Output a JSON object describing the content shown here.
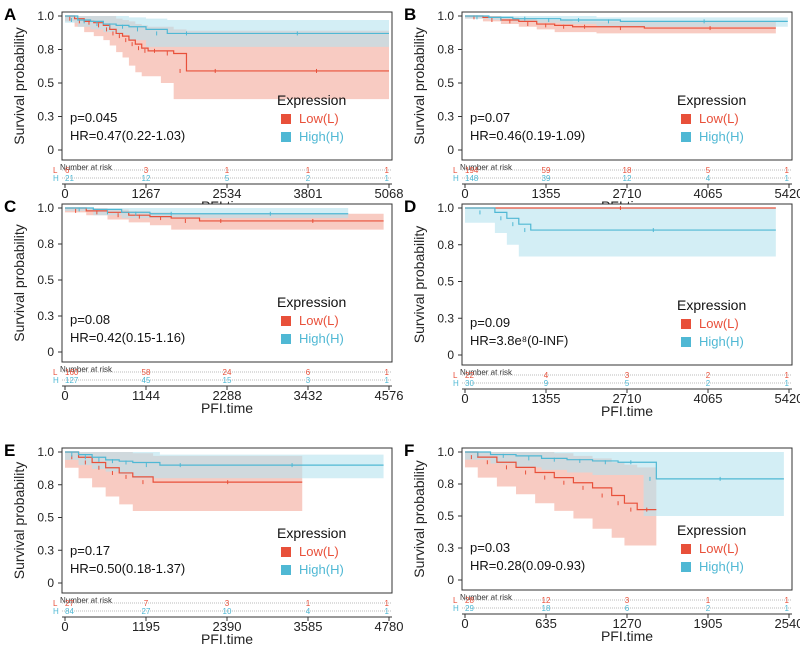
{
  "colors": {
    "low": "#e8503a",
    "high": "#4fb8d4",
    "low_band": "#f4a89a",
    "high_band": "#b5e3ef",
    "axis": "#333333"
  },
  "chart_data": [
    {
      "type": "line",
      "panel": "A",
      "xlabel": "PFI.time",
      "ylabel": "Survival probability",
      "xlim": [
        0,
        5068
      ],
      "ylim": [
        0,
        1
      ],
      "xticks": [
        "0",
        "1267",
        "2534",
        "3801",
        "5068"
      ],
      "yticks": [
        "0",
        "0.3",
        "0.5",
        "0.8",
        "1.0"
      ],
      "stats": {
        "p": "p=0.045",
        "hr": "HR=0.47(0.22-1.03)"
      },
      "legend_title": "Expression",
      "series": [
        {
          "name": "Low(L)",
          "key": "low",
          "x": [
            0,
            150,
            300,
            450,
            600,
            700,
            800,
            900,
            1000,
            1100,
            1200,
            1300,
            1500,
            1700,
            1900,
            2800,
            5068
          ],
          "y": [
            1.0,
            0.98,
            0.96,
            0.95,
            0.93,
            0.9,
            0.87,
            0.85,
            0.82,
            0.79,
            0.76,
            0.74,
            0.74,
            0.72,
            0.59,
            0.59,
            0.59
          ],
          "ci_low": [
            1.0,
            0.96,
            0.92,
            0.88,
            0.85,
            0.82,
            0.78,
            0.73,
            0.69,
            0.63,
            0.58,
            0.55,
            0.55,
            0.5,
            0.38,
            0.38,
            0.38
          ],
          "ci_high": [
            1.0,
            1.0,
            1.0,
            1.0,
            1.0,
            1.0,
            0.98,
            0.97,
            0.96,
            0.94,
            0.93,
            0.92,
            0.92,
            0.9,
            0.89,
            0.89,
            0.89
          ]
        },
        {
          "name": "High(H)",
          "key": "high",
          "x": [
            0,
            200,
            400,
            600,
            800,
            1000,
            1267,
            1600,
            2200,
            5068
          ],
          "y": [
            1.0,
            0.97,
            0.96,
            0.94,
            0.93,
            0.92,
            0.9,
            0.87,
            0.87,
            0.87
          ],
          "ci_low": [
            1.0,
            0.95,
            0.92,
            0.9,
            0.88,
            0.86,
            0.82,
            0.77,
            0.77,
            0.77
          ],
          "ci_high": [
            1.0,
            1.0,
            1.0,
            1.0,
            1.0,
            0.99,
            0.98,
            0.97,
            0.97,
            0.97
          ]
        }
      ],
      "risk_title": "Number at risk",
      "risk": {
        "low": [
          "6",
          "3",
          "1",
          "1",
          "1"
        ],
        "high": [
          "21",
          "12",
          "5",
          "2",
          "1"
        ]
      }
    },
    {
      "type": "line",
      "panel": "B",
      "xlabel": "PFI.time",
      "ylabel": "Survival probability",
      "xlim": [
        0,
        5420
      ],
      "ylim": [
        0,
        1
      ],
      "xticks": [
        "0",
        "1355",
        "2710",
        "4065",
        "5420"
      ],
      "yticks": [
        "0",
        "0.3",
        "0.5",
        "0.8",
        "1.0"
      ],
      "stats": {
        "p": "p=0.07",
        "hr": "HR=0.46(0.19-1.09)"
      },
      "legend_title": "Expression",
      "series": [
        {
          "name": "Low(L)",
          "key": "low",
          "x": [
            0,
            300,
            600,
            900,
            1200,
            1500,
            1800,
            2200,
            3000,
            5200
          ],
          "y": [
            1.0,
            0.99,
            0.97,
            0.96,
            0.94,
            0.93,
            0.92,
            0.92,
            0.91,
            0.91
          ],
          "ci_low": [
            1.0,
            0.98,
            0.96,
            0.94,
            0.92,
            0.9,
            0.88,
            0.88,
            0.87,
            0.87
          ],
          "ci_high": [
            1.0,
            1.0,
            0.99,
            0.98,
            0.97,
            0.97,
            0.96,
            0.96,
            0.96,
            0.96
          ]
        },
        {
          "name": "High(H)",
          "key": "high",
          "x": [
            0,
            400,
            800,
            1200,
            1600,
            2200,
            2600,
            5400
          ],
          "y": [
            1.0,
            0.99,
            0.98,
            0.98,
            0.97,
            0.97,
            0.96,
            0.96
          ],
          "ci_low": [
            1.0,
            0.98,
            0.97,
            0.96,
            0.95,
            0.94,
            0.92,
            0.92
          ],
          "ci_high": [
            1.0,
            1.0,
            1.0,
            1.0,
            1.0,
            0.99,
            0.99,
            0.99
          ]
        }
      ],
      "risk_title": "Number at risk",
      "risk": {
        "low": [
          "194",
          "59",
          "18",
          "5",
          "1"
        ],
        "high": [
          "148",
          "39",
          "12",
          "4",
          "1"
        ]
      }
    },
    {
      "type": "line",
      "panel": "C",
      "xlabel": "PFI.time",
      "ylabel": "Survival probability",
      "xlim": [
        0,
        4576
      ],
      "ylim": [
        0,
        1
      ],
      "xticks": [
        "0",
        "1144",
        "2288",
        "3432",
        "4576"
      ],
      "yticks": [
        "0",
        "0.3",
        "0.5",
        "0.8",
        "1.0"
      ],
      "stats": {
        "p": "p=0.08",
        "hr": "HR=0.42(0.15-1.16)"
      },
      "legend_title": "Expression",
      "series": [
        {
          "name": "Low(L)",
          "key": "low",
          "x": [
            0,
            300,
            600,
            900,
            1200,
            1500,
            1900,
            2500,
            4500
          ],
          "y": [
            1.0,
            0.98,
            0.97,
            0.95,
            0.94,
            0.93,
            0.91,
            0.91,
            0.91
          ],
          "ci_low": [
            1.0,
            0.97,
            0.95,
            0.92,
            0.9,
            0.88,
            0.85,
            0.85,
            0.85
          ],
          "ci_high": [
            1.0,
            1.0,
            0.99,
            0.98,
            0.97,
            0.96,
            0.96,
            0.96,
            0.96
          ]
        },
        {
          "name": "High(H)",
          "key": "high",
          "x": [
            0,
            400,
            800,
            1200,
            1800,
            4000
          ],
          "y": [
            1.0,
            0.99,
            0.97,
            0.96,
            0.96,
            0.96
          ],
          "ci_low": [
            1.0,
            0.98,
            0.95,
            0.93,
            0.93,
            0.93
          ],
          "ci_high": [
            1.0,
            1.0,
            1.0,
            1.0,
            1.0,
            1.0
          ]
        }
      ],
      "risk_title": "Number at risk",
      "risk": {
        "low": [
          "160",
          "58",
          "24",
          "6",
          "1"
        ],
        "high": [
          "127",
          "45",
          "15",
          "3",
          "1"
        ]
      }
    },
    {
      "type": "line",
      "panel": "D",
      "xlabel": "PFI.time",
      "ylabel": "Survival probability",
      "xlim": [
        0,
        5420
      ],
      "ylim": [
        0,
        1
      ],
      "xticks": [
        "0",
        "1355",
        "2710",
        "4065",
        "5420"
      ],
      "yticks": [
        "0",
        "0.3",
        "0.5",
        "0.8",
        "1.0"
      ],
      "stats": {
        "p": "p=0.09",
        "hr": "HR=3.8e⁸(0-INF)"
      },
      "legend_title": "Expression",
      "series": [
        {
          "name": "Low(L)",
          "key": "low",
          "x": [
            0,
            5200
          ],
          "y": [
            1.0,
            1.0
          ],
          "ci_low": [
            1.0,
            1.0
          ],
          "ci_high": [
            1.0,
            1.0
          ]
        },
        {
          "name": "High(H)",
          "key": "high",
          "x": [
            0,
            500,
            700,
            900,
            1100,
            5200
          ],
          "y": [
            1.0,
            0.97,
            0.93,
            0.89,
            0.85,
            0.85
          ],
          "ci_low": [
            1.0,
            0.9,
            0.83,
            0.75,
            0.67,
            0.67
          ],
          "ci_high": [
            1.0,
            1.0,
            1.0,
            1.0,
            1.0,
            1.0
          ]
        }
      ],
      "risk_title": "Number at risk",
      "risk": {
        "low": [
          "22",
          "4",
          "3",
          "2",
          "1"
        ],
        "high": [
          "30",
          "9",
          "5",
          "2",
          "1"
        ]
      }
    },
    {
      "type": "line",
      "panel": "E",
      "xlabel": "PFI.time",
      "ylabel": "Survival probability",
      "xlim": [
        0,
        4780
      ],
      "ylim": [
        0,
        1
      ],
      "xticks": [
        "0",
        "1195",
        "2390",
        "3585",
        "4780"
      ],
      "yticks": [
        "0",
        "0.3",
        "0.5",
        "0.8",
        "1.0"
      ],
      "stats": {
        "p": "p=0.17",
        "hr": "HR=0.50(0.18-1.37)"
      },
      "legend_title": "Expression",
      "series": [
        {
          "name": "Low(L)",
          "key": "low",
          "x": [
            0,
            200,
            400,
            600,
            800,
            1000,
            1300,
            3500
          ],
          "y": [
            1.0,
            0.96,
            0.92,
            0.88,
            0.84,
            0.81,
            0.77,
            0.77
          ],
          "ci_low": [
            1.0,
            0.88,
            0.8,
            0.73,
            0.66,
            0.6,
            0.55,
            0.55
          ],
          "ci_high": [
            1.0,
            1.0,
            1.0,
            1.0,
            1.0,
            0.99,
            0.97,
            0.97
          ]
        },
        {
          "name": "High(H)",
          "key": "high",
          "x": [
            0,
            200,
            400,
            600,
            800,
            1000,
            1400,
            2000,
            4700
          ],
          "y": [
            1.0,
            0.98,
            0.96,
            0.94,
            0.93,
            0.92,
            0.9,
            0.9,
            0.9
          ],
          "ci_low": [
            1.0,
            0.94,
            0.9,
            0.87,
            0.85,
            0.83,
            0.8,
            0.8,
            0.8
          ],
          "ci_high": [
            1.0,
            1.0,
            1.0,
            1.0,
            1.0,
            1.0,
            0.98,
            0.98,
            0.98
          ]
        }
      ],
      "risk_title": "Number at risk",
      "risk": {
        "low": [
          "27",
          "7",
          "3",
          "1",
          "1"
        ],
        "high": [
          "84",
          "27",
          "10",
          "4",
          "1"
        ]
      }
    },
    {
      "type": "line",
      "panel": "F",
      "xlabel": "PFI.time",
      "ylabel": "Survival probability",
      "xlim": [
        0,
        2540
      ],
      "ylim": [
        0,
        1
      ],
      "xticks": [
        "0",
        "635",
        "1270",
        "1905",
        "2540"
      ],
      "yticks": [
        "0",
        "0.3",
        "0.5",
        "0.8",
        "1.0"
      ],
      "stats": {
        "p": "p=0.03",
        "hr": "HR=0.28(0.09-0.93)"
      },
      "legend_title": "Expression",
      "series": [
        {
          "name": "Low(L)",
          "key": "low",
          "x": [
            0,
            100,
            250,
            400,
            550,
            700,
            850,
            1000,
            1150,
            1250,
            1350,
            1500
          ],
          "y": [
            1.0,
            0.96,
            0.92,
            0.88,
            0.84,
            0.8,
            0.76,
            0.72,
            0.66,
            0.6,
            0.55,
            0.55
          ],
          "ci_low": [
            1.0,
            0.88,
            0.8,
            0.73,
            0.67,
            0.6,
            0.54,
            0.48,
            0.4,
            0.33,
            0.27,
            0.27
          ],
          "ci_high": [
            1.0,
            1.0,
            1.0,
            1.0,
            1.0,
            0.99,
            0.97,
            0.95,
            0.92,
            0.9,
            0.88,
            0.88
          ]
        },
        {
          "name": "High(H)",
          "key": "high",
          "x": [
            0,
            200,
            400,
            600,
            800,
            1000,
            1200,
            1400,
            1500,
            2500
          ],
          "y": [
            1.0,
            0.98,
            0.97,
            0.95,
            0.94,
            0.93,
            0.92,
            0.92,
            0.79,
            0.79
          ],
          "ci_low": [
            1.0,
            0.94,
            0.91,
            0.88,
            0.86,
            0.84,
            0.82,
            0.82,
            0.5,
            0.5
          ],
          "ci_high": [
            1.0,
            1.0,
            1.0,
            1.0,
            1.0,
            1.0,
            1.0,
            1.0,
            1.0,
            1.0
          ]
        }
      ],
      "risk_title": "Number at risk",
      "risk": {
        "low": [
          "28",
          "12",
          "3",
          "1",
          "1"
        ],
        "high": [
          "29",
          "18",
          "6",
          "2",
          "1"
        ]
      }
    }
  ]
}
